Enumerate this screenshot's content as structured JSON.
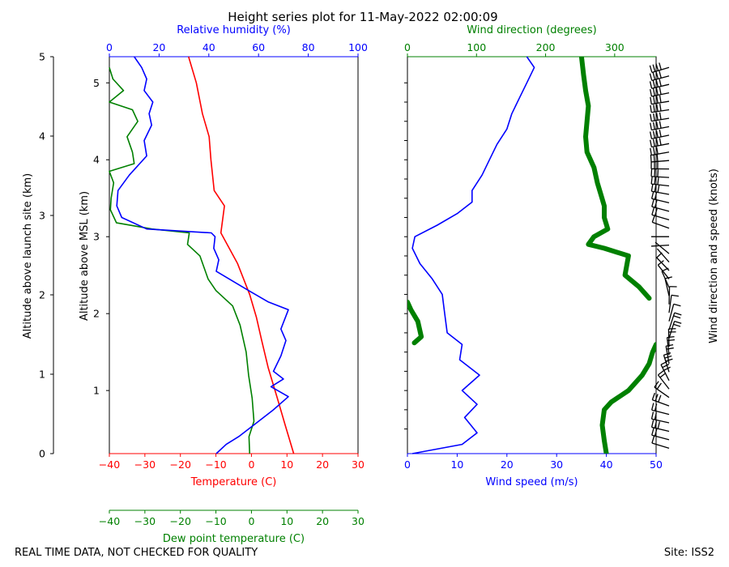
{
  "title": "Height series plot for 11-May-2022 02:00:09",
  "footer_left": "REAL TIME DATA, NOT CHECKED FOR QUALITY",
  "footer_right": "Site: ISS2",
  "colors": {
    "temperature": "#ff0000",
    "dewpoint": "#008000",
    "humidity": "#0000ff",
    "wind_speed": "#0000ff",
    "wind_dir": "#008000",
    "axis": "#000000"
  },
  "chart_data": [
    {
      "type": "line",
      "name": "thermo_panel",
      "title": "Height series plot for 11-May-2022 02:00:09",
      "ylabel": "Altitude above MSL (km)",
      "ylabel_left": "Altitude above launch site (km)",
      "ylim_msl": [
        0.18,
        5.34
      ],
      "yticks_msl": [
        "1",
        "2",
        "3",
        "4",
        "5"
      ],
      "yticks_agl": [
        "0",
        "1",
        "2",
        "3",
        "4",
        "5"
      ],
      "x_axes": {
        "temperature": {
          "label": "Temperature (C)",
          "xlim": [
            -40,
            30
          ],
          "ticks": [
            "−40",
            "−30",
            "−20",
            "−10",
            "0",
            "10",
            "20",
            "30"
          ]
        },
        "dewpoint": {
          "label": "Dew point temperature (C)",
          "xlim": [
            -40,
            30
          ],
          "ticks": [
            "−40",
            "−30",
            "−20",
            "−10",
            "0",
            "10",
            "20",
            "30"
          ]
        },
        "humidity": {
          "label": "Relative humidity (%)",
          "xlim": [
            0,
            100
          ],
          "ticks": [
            "0",
            "20",
            "40",
            "60",
            "80",
            "100"
          ]
        }
      },
      "series": [
        {
          "name": "Temperature",
          "axis": "temperature",
          "points": [
            [
              11.9,
              0.18
            ],
            [
              9.5,
              0.55
            ],
            [
              7.3,
              0.9
            ],
            [
              4.7,
              1.3
            ],
            [
              2.9,
              1.65
            ],
            [
              1.4,
              1.95
            ],
            [
              -0.5,
              2.25
            ],
            [
              -3.9,
              2.65
            ],
            [
              -8.6,
              3.05
            ],
            [
              -7.6,
              3.4
            ],
            [
              -10.5,
              3.6
            ],
            [
              -11.4,
              4.0
            ],
            [
              -11.9,
              4.3
            ],
            [
              -13.8,
              4.6
            ],
            [
              -15.5,
              5.0
            ],
            [
              -17.7,
              5.34
            ]
          ]
        },
        {
          "name": "Dew point",
          "axis": "dewpoint",
          "points": [
            [
              -0.5,
              0.18
            ],
            [
              -0.7,
              0.4
            ],
            [
              0.7,
              0.6
            ],
            [
              0.2,
              0.9
            ],
            [
              -0.8,
              1.2
            ],
            [
              -1.5,
              1.5
            ],
            [
              -3.2,
              1.85
            ],
            [
              -5.3,
              2.1
            ],
            [
              -10.0,
              2.3
            ],
            [
              -12.2,
              2.45
            ],
            [
              -14.5,
              2.75
            ],
            [
              -18.0,
              2.9
            ],
            [
              -17.5,
              3.05
            ],
            [
              -28.0,
              3.1
            ],
            [
              -38.0,
              3.18
            ],
            [
              -39.7,
              3.35
            ],
            [
              -39.5,
              3.5
            ],
            [
              -38.8,
              3.7
            ],
            [
              -40.0,
              3.85
            ],
            [
              -33.0,
              3.95
            ],
            [
              -33.5,
              4.1
            ],
            [
              -35.0,
              4.3
            ],
            [
              -32.0,
              4.5
            ],
            [
              -33.5,
              4.65
            ],
            [
              -40.0,
              4.75
            ],
            [
              -36.0,
              4.9
            ],
            [
              -39.0,
              5.05
            ],
            [
              -40.0,
              5.2
            ]
          ]
        },
        {
          "name": "Relative humidity",
          "axis": "humidity",
          "points": [
            [
              43.0,
              0.18
            ],
            [
              47.0,
              0.3
            ],
            [
              52.0,
              0.4
            ],
            [
              58.0,
              0.55
            ],
            [
              66.0,
              0.75
            ],
            [
              72.0,
              0.92
            ],
            [
              65.0,
              1.05
            ],
            [
              70.0,
              1.15
            ],
            [
              66.0,
              1.25
            ],
            [
              69.0,
              1.45
            ],
            [
              71.0,
              1.65
            ],
            [
              69.0,
              1.8
            ],
            [
              72.0,
              2.05
            ],
            [
              64.0,
              2.15
            ],
            [
              56.0,
              2.3
            ],
            [
              43.0,
              2.55
            ],
            [
              44.0,
              2.7
            ],
            [
              42.0,
              2.85
            ],
            [
              42.5,
              3.0
            ],
            [
              41.0,
              3.05
            ],
            [
              15.0,
              3.1
            ],
            [
              5.0,
              3.25
            ],
            [
              3.0,
              3.4
            ],
            [
              3.5,
              3.6
            ],
            [
              8.0,
              3.8
            ],
            [
              15.0,
              4.05
            ],
            [
              14.0,
              4.25
            ],
            [
              17.0,
              4.45
            ],
            [
              16.0,
              4.6
            ],
            [
              17.5,
              4.75
            ],
            [
              14.0,
              4.9
            ],
            [
              15.0,
              5.05
            ],
            [
              13.0,
              5.2
            ],
            [
              10.0,
              5.34
            ]
          ]
        }
      ]
    },
    {
      "type": "line",
      "name": "wind_panel",
      "x_axes": {
        "wind_speed": {
          "label": "Wind speed (m/s)",
          "xlim": [
            0,
            50
          ],
          "ticks": [
            "0",
            "10",
            "20",
            "30",
            "40",
            "50"
          ]
        },
        "wind_dir": {
          "label": "Wind direction (degrees)",
          "xlim": [
            0,
            360
          ],
          "ticks": [
            "0",
            "100",
            "200",
            "300"
          ]
        }
      },
      "ylabel_right": "Wind direction and speed (knots)",
      "series": [
        {
          "name": "Wind speed",
          "axis": "wind_speed",
          "points": [
            [
              1.0,
              0.18
            ],
            [
              11.0,
              0.3
            ],
            [
              14.0,
              0.45
            ],
            [
              11.5,
              0.65
            ],
            [
              14.0,
              0.82
            ],
            [
              11.0,
              1.0
            ],
            [
              14.5,
              1.2
            ],
            [
              10.5,
              1.4
            ],
            [
              11.0,
              1.6
            ],
            [
              8.0,
              1.75
            ],
            [
              7.5,
              2.0
            ],
            [
              7.0,
              2.25
            ],
            [
              5.0,
              2.45
            ],
            [
              2.5,
              2.65
            ],
            [
              1.0,
              2.85
            ],
            [
              1.5,
              3.0
            ],
            [
              6.0,
              3.15
            ],
            [
              10.0,
              3.3
            ],
            [
              13.0,
              3.45
            ],
            [
              13.0,
              3.6
            ],
            [
              15.0,
              3.8
            ],
            [
              16.5,
              4.0
            ],
            [
              18.0,
              4.2
            ],
            [
              20.0,
              4.4
            ],
            [
              21.0,
              4.6
            ],
            [
              22.5,
              4.8
            ],
            [
              24.0,
              5.0
            ],
            [
              25.5,
              5.2
            ],
            [
              24.0,
              5.34
            ]
          ]
        },
        {
          "name": "Wind direction",
          "axis": "wind_dir",
          "points": [
            [
              288,
              0.18
            ],
            [
              285,
              0.35
            ],
            [
              282,
              0.55
            ],
            [
              285,
              0.75
            ],
            [
              295,
              0.85
            ],
            [
              320,
              1.0
            ],
            [
              340,
              1.2
            ],
            [
              350,
              1.35
            ],
            [
              355,
              1.5
            ],
            [
              360,
              1.6
            ],
            [
              10,
              1.62
            ],
            [
              20,
              1.7
            ],
            [
              15,
              1.9
            ],
            [
              5,
              2.05
            ],
            [
              0,
              2.15
            ],
            [
              350,
              2.2
            ],
            [
              335,
              2.35
            ],
            [
              315,
              2.5
            ],
            [
              320,
              2.75
            ],
            [
              285,
              2.85
            ],
            [
              262,
              2.9
            ],
            [
              270,
              3.0
            ],
            [
              290,
              3.1
            ],
            [
              285,
              3.25
            ],
            [
              285,
              3.4
            ],
            [
              280,
              3.55
            ],
            [
              275,
              3.7
            ],
            [
              270,
              3.9
            ],
            [
              260,
              4.1
            ],
            [
              258,
              4.3
            ],
            [
              260,
              4.5
            ],
            [
              262,
              4.7
            ],
            [
              258,
              4.9
            ],
            [
              255,
              5.1
            ],
            [
              252,
              5.34
            ]
          ]
        }
      ]
    }
  ]
}
